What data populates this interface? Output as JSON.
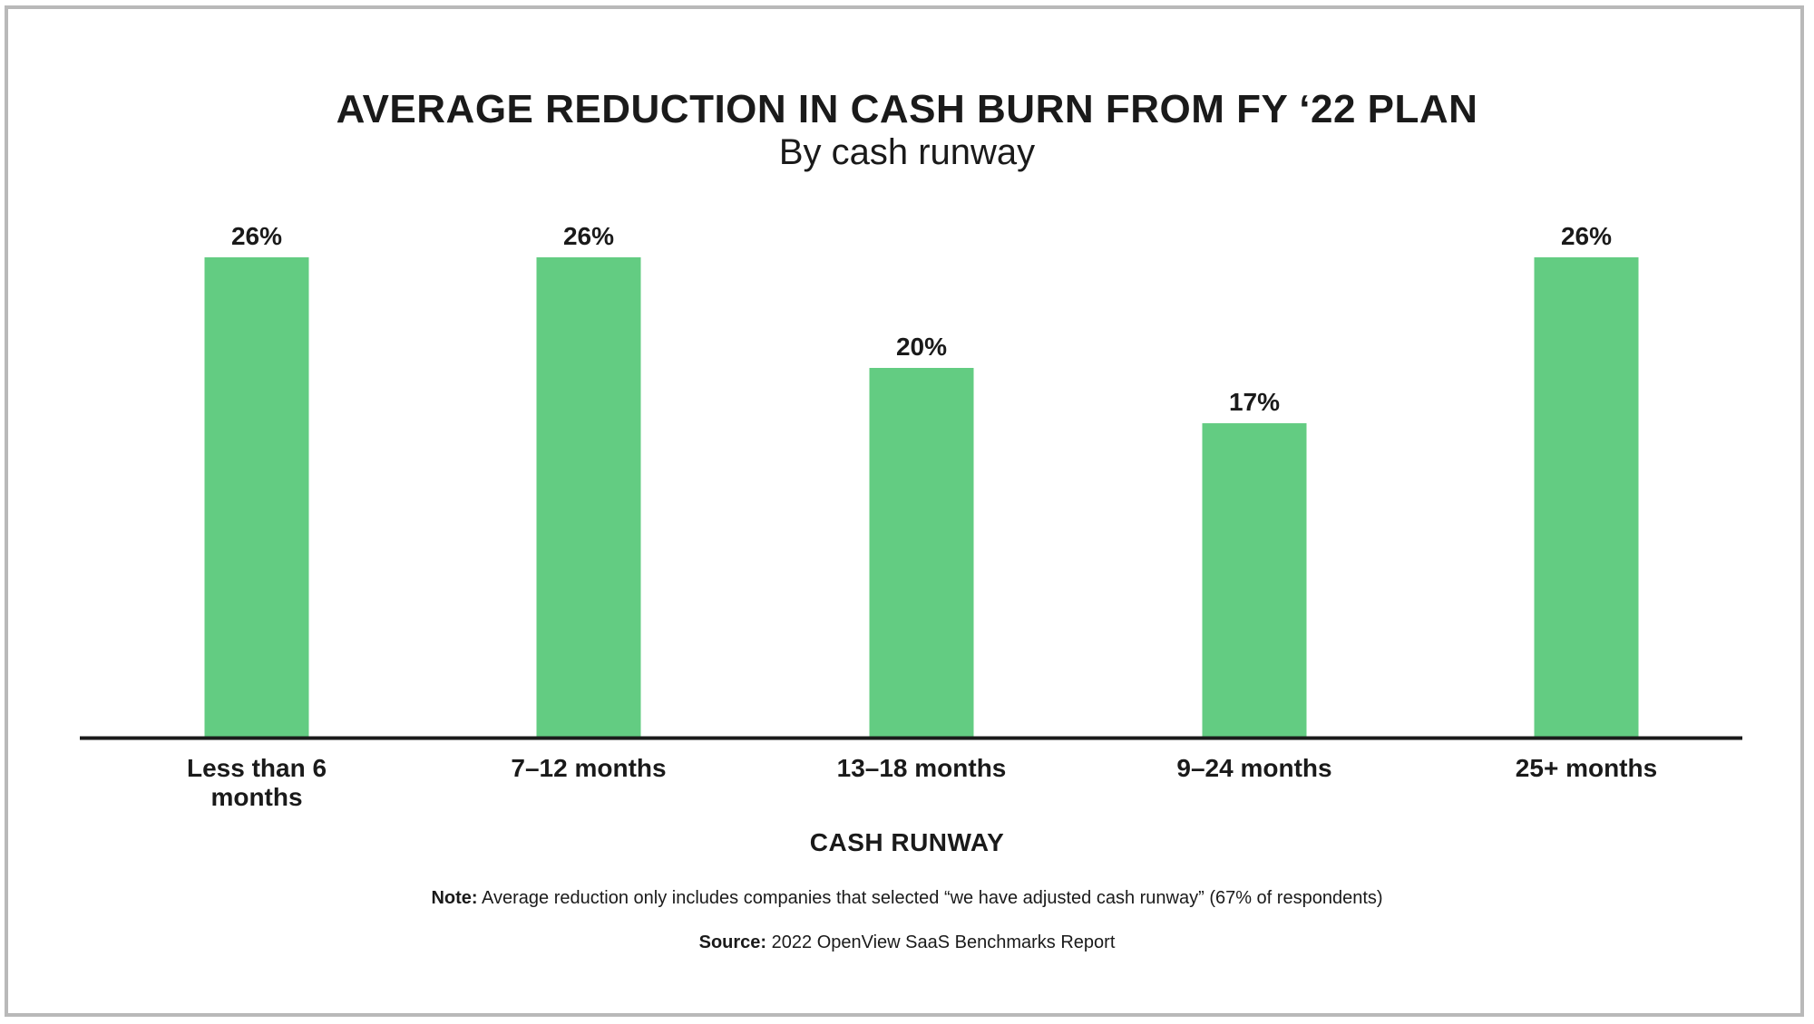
{
  "colors": {
    "bar": "#63cc82",
    "text": "#1a1a1a",
    "axis": "#1a1a1a",
    "frame": "#b9b9b9"
  },
  "footer": {
    "note_label": "Note:",
    "note_text": "Average reduction only includes companies that selected “we have adjusted cash runway” (67% of respondents)",
    "source_label": "Source:",
    "source_text": "2022 OpenView SaaS Benchmarks Report"
  },
  "chart_data": {
    "type": "bar",
    "title": "AVERAGE REDUCTION IN CASH BURN FROM FY ‘22 PLAN",
    "subtitle": "By cash runway",
    "xlabel": "CASH RUNWAY",
    "ylabel": "",
    "categories": [
      [
        "Less than 6",
        "months"
      ],
      [
        "7–12 months"
      ],
      [
        "13–18 months"
      ],
      [
        "9–24 months"
      ],
      [
        "25+ months"
      ]
    ],
    "values": [
      26,
      26,
      20,
      17,
      26
    ],
    "data_labels": [
      "26%",
      "26%",
      "20%",
      "17%",
      "26%"
    ],
    "ylim": [
      0,
      30
    ],
    "grid": false,
    "legend": "none"
  }
}
